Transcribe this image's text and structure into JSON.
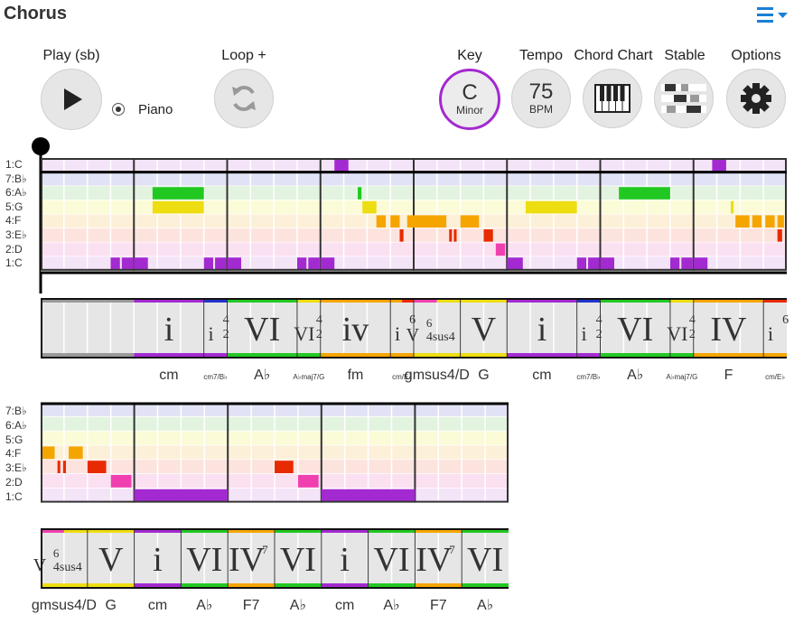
{
  "title": "Chorus",
  "menu_icon": "hamburger-dropdown-icon",
  "controls": {
    "play": {
      "label": "Play (sb)",
      "icon": "play-icon"
    },
    "instrument": {
      "label": "Piano"
    },
    "loop": {
      "label": "Loop +",
      "icon": "loop-icon"
    },
    "key": {
      "label": "Key",
      "value": "C",
      "mode": "Minor"
    },
    "tempo": {
      "label": "Tempo",
      "value": "75",
      "unit": "BPM"
    },
    "chord_chart": {
      "label": "Chord Chart",
      "icon": "piano-keys-icon"
    },
    "stable": {
      "label": "Stable",
      "icon": "stable-bars-icon"
    },
    "options": {
      "label": "Options",
      "icon": "gear-icon"
    }
  },
  "rows1": [
    "1:C",
    "7:B♭",
    "6:A♭",
    "5:G",
    "4:F",
    "3:E♭",
    "2:D",
    "1:C"
  ],
  "rows2": [
    "7:B♭",
    "6:A♭",
    "5:G",
    "4:F",
    "3:E♭",
    "2:D",
    "1:C"
  ],
  "chords1": [
    {
      "num": "i",
      "sup": "",
      "sub": "",
      "name": "cm",
      "small": false
    },
    {
      "num": "i",
      "sup": "4",
      "sub": "2",
      "name": "cm7/B♭",
      "small": true
    },
    {
      "num": "VI",
      "sup": "",
      "sub": "",
      "name": "A♭",
      "small": false
    },
    {
      "num": "VI",
      "sup": "4",
      "sub": "2",
      "name": "A♭maj7/G",
      "small": true
    },
    {
      "num": "iv",
      "sup": "",
      "sub": "",
      "name": "fm",
      "small": false
    },
    {
      "num": "i",
      "sup": "6",
      "sub": "",
      "name": "cm/E♭",
      "small": true
    },
    {
      "num": "V",
      "sup": "6",
      "sub": "4sus4",
      "name": "gmsus4/D",
      "small": false
    },
    {
      "num": "V",
      "sup": "",
      "sub": "",
      "name": "G",
      "small": false
    },
    {
      "num": "i",
      "sup": "",
      "sub": "",
      "name": "cm",
      "small": false
    },
    {
      "num": "i",
      "sup": "4",
      "sub": "2",
      "name": "cm7/B♭",
      "small": true
    },
    {
      "num": "VI",
      "sup": "",
      "sub": "",
      "name": "A♭",
      "small": false
    },
    {
      "num": "VI",
      "sup": "4",
      "sub": "2",
      "name": "A♭maj7/G",
      "small": true
    },
    {
      "num": "IV",
      "sup": "",
      "sub": "",
      "name": "F",
      "small": false
    },
    {
      "num": "i",
      "sup": "6",
      "sub": "",
      "name": "cm/E♭",
      "small": true
    }
  ],
  "chords2": [
    {
      "num": "V",
      "sup": "6",
      "sub": "4sus4",
      "name": "gmsus4/D",
      "small": false
    },
    {
      "num": "V",
      "sup": "",
      "sub": "",
      "name": "G",
      "small": false
    },
    {
      "num": "i",
      "sup": "",
      "sub": "",
      "name": "cm",
      "small": false
    },
    {
      "num": "VI",
      "sup": "",
      "sub": "",
      "name": "A♭",
      "small": false
    },
    {
      "num": "IV",
      "sup": "7",
      "sub": "",
      "name": "F7",
      "small": false
    },
    {
      "num": "VI",
      "sup": "",
      "sub": "",
      "name": "A♭",
      "small": false
    },
    {
      "num": "i",
      "sup": "",
      "sub": "",
      "name": "cm",
      "small": false
    },
    {
      "num": "VI",
      "sup": "",
      "sub": "",
      "name": "A♭",
      "small": false
    },
    {
      "num": "IV",
      "sup": "7",
      "sub": "",
      "name": "F7",
      "small": false
    },
    {
      "num": "VI",
      "sup": "",
      "sub": "",
      "name": "A♭",
      "small": false
    }
  ],
  "colors": {
    "purple": "#a32ad0",
    "green": "#22c822",
    "yellow": "#eedd11",
    "orange": "#f5a500",
    "red": "#e82a00",
    "pink": "#f040b0",
    "blue": "#2233cc",
    "gray": "#999999"
  }
}
